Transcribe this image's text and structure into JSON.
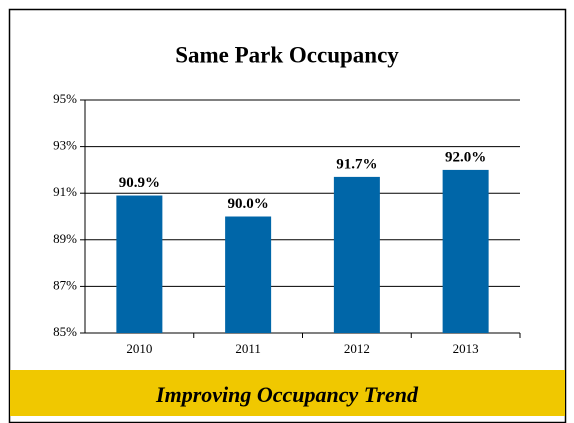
{
  "chart_data": {
    "type": "bar",
    "title": "Same Park Occupancy",
    "categories": [
      "2010",
      "2011",
      "2012",
      "2013"
    ],
    "values": [
      90.9,
      90.0,
      91.7,
      92.0
    ],
    "value_labels": [
      "90.9%",
      "90.0%",
      "91.7%",
      "92.0%"
    ],
    "color": "#0066a8",
    "ylim": [
      85,
      95
    ],
    "yticks": [
      {
        "value": 85,
        "label": "85%"
      },
      {
        "value": 87,
        "label": "87%"
      },
      {
        "value": 89,
        "label": "89%"
      },
      {
        "value": 91,
        "label": "91%"
      },
      {
        "value": 93,
        "label": "93%"
      },
      {
        "value": 95,
        "label": "95%"
      }
    ],
    "grid": true,
    "footer": "Improving Occupancy Trend"
  }
}
